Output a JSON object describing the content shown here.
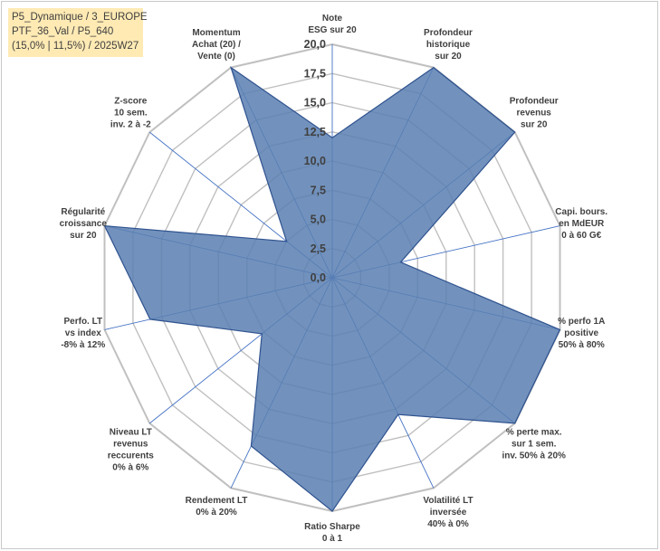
{
  "info_box": {
    "line1": "P5_Dynamique / 3_EUROPE",
    "line2": "PTF_36_Val / P5_640",
    "line3": "(15,0% | 11,5%) / 2025W27"
  },
  "colors": {
    "fill": "#5b80b2",
    "stroke": "#2f528f",
    "grid": "#c0c0c0",
    "spoke": "#4472c4",
    "info_bg": "#ffeab4"
  },
  "chart_data": {
    "type": "radar",
    "rmin": 0,
    "rmax": 20,
    "ticks": [
      "0,0",
      "2,5",
      "5,0",
      "7,5",
      "10,0",
      "12,5",
      "15,0",
      "17,5",
      "20,0"
    ],
    "axes": [
      [
        "Note",
        "ESG sur 20"
      ],
      [
        "Profondeur",
        "historique",
        "sur 20"
      ],
      [
        "Profondeur",
        "revenus",
        "sur 20"
      ],
      [
        "Capi. bours.",
        "en MdEUR",
        "0 à 60 G€"
      ],
      [
        "% perfo 1A",
        "positive",
        "50% à 80%"
      ],
      [
        "% perte max.",
        "sur 1 sem.",
        "inv. 50% à 20%"
      ],
      [
        "Volatilité LT",
        "inversée",
        "40% à 0%"
      ],
      [
        "Ratio Sharpe",
        "0 à 1"
      ],
      [
        "Rendement LT",
        "0% à 20%"
      ],
      [
        "Niveau LT",
        "revenus",
        "reccurents",
        "0% à 6%"
      ],
      [
        "Perfo. LT",
        "vs index",
        "-8% à 12%"
      ],
      [
        "Régularité",
        "croissance",
        "sur 20"
      ],
      [
        "Z-score",
        "10 sem.",
        "inv. 2 à -2"
      ],
      [
        "Momentum",
        "Achat (20) /",
        "Vente (0)"
      ]
    ],
    "values": [
      12.0,
      20.0,
      20.0,
      6.0,
      20.0,
      20.0,
      13.0,
      20.0,
      16.0,
      7.7,
      16.0,
      20.0,
      5.0,
      20.0
    ]
  }
}
